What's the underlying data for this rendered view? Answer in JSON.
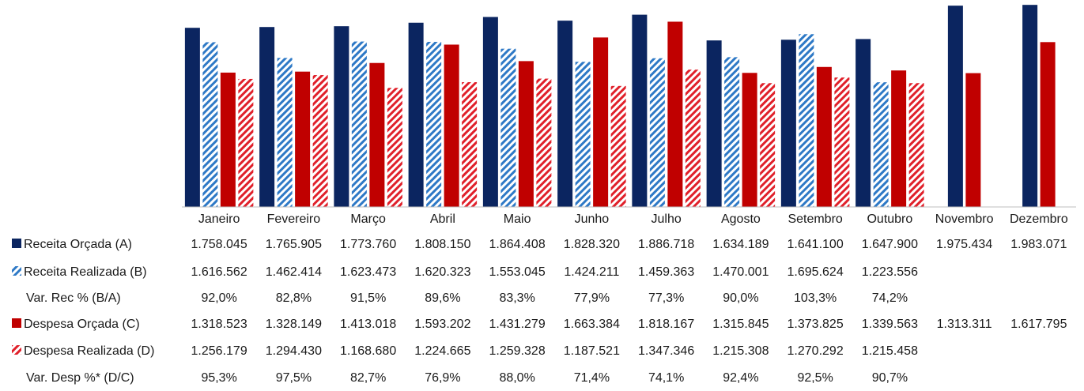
{
  "colors": {
    "receita_orcada": "#0b2560",
    "receita_realizada": "#2e79c6",
    "despesa_orcada": "#c00000",
    "despesa_realizada": "#e0202a"
  },
  "chart_data": {
    "type": "bar",
    "categories": [
      "Janeiro",
      "Fevereiro",
      "Março",
      "Abril",
      "Maio",
      "Junho",
      "Julho",
      "Agosto",
      "Setembro",
      "Outubro",
      "Novembro",
      "Dezembro"
    ],
    "ylim": [
      0,
      2000000
    ],
    "grid": false,
    "legend_position": "left, in data table",
    "series": [
      {
        "name": "Receita Orçada (A)",
        "pattern": "solid",
        "color": "#0b2560",
        "values": [
          1758045,
          1765905,
          1773760,
          1808150,
          1864408,
          1828320,
          1886718,
          1634189,
          1641100,
          1647900,
          1975434,
          1983071
        ]
      },
      {
        "name": "Receita Realizada (B)",
        "pattern": "hatched",
        "color": "#2e79c6",
        "values": [
          1616562,
          1462414,
          1623473,
          1620323,
          1553045,
          1424211,
          1459363,
          1470001,
          1695624,
          1223556,
          null,
          null
        ]
      },
      {
        "name": "Despesa Orçada (C)",
        "pattern": "solid",
        "color": "#c00000",
        "values": [
          1318523,
          1328149,
          1413018,
          1593202,
          1431279,
          1663384,
          1818167,
          1315845,
          1373825,
          1339563,
          1313311,
          1617795
        ]
      },
      {
        "name": "Despesa Realizada (D)",
        "pattern": "hatched",
        "color": "#e0202a",
        "values": [
          1256179,
          1294430,
          1168680,
          1224665,
          1259328,
          1187521,
          1347346,
          1215308,
          1270292,
          1215458,
          null,
          null
        ]
      }
    ],
    "table_rows": [
      {
        "label": "Receita Orçada (A)",
        "legend": "solid-dark-blue",
        "cells": [
          "1.758.045",
          "1.765.905",
          "1.773.760",
          "1.808.150",
          "1.864.408",
          "1.828.320",
          "1.886.718",
          "1.634.189",
          "1.641.100",
          "1.647.900",
          "1.975.434",
          "1.983.071"
        ]
      },
      {
        "label": "Receita Realizada (B)",
        "legend": "hatched-blue",
        "cells": [
          "1.616.562",
          "1.462.414",
          "1.623.473",
          "1.620.323",
          "1.553.045",
          "1.424.211",
          "1.459.363",
          "1.470.001",
          "1.695.624",
          "1.223.556",
          "",
          ""
        ]
      },
      {
        "label": "Var. Rec % (B/A)",
        "legend": "",
        "cells": [
          "92,0%",
          "82,8%",
          "91,5%",
          "89,6%",
          "83,3%",
          "77,9%",
          "77,3%",
          "90,0%",
          "103,3%",
          "74,2%",
          "",
          ""
        ]
      },
      {
        "label": "Despesa Orçada (C)",
        "legend": "solid-red",
        "cells": [
          "1.318.523",
          "1.328.149",
          "1.413.018",
          "1.593.202",
          "1.431.279",
          "1.663.384",
          "1.818.167",
          "1.315.845",
          "1.373.825",
          "1.339.563",
          "1.313.311",
          "1.617.795"
        ]
      },
      {
        "label": "Despesa Realizada (D)",
        "legend": "hatched-red",
        "cells": [
          "1.256.179",
          "1.294.430",
          "1.168.680",
          "1.224.665",
          "1.259.328",
          "1.187.521",
          "1.347.346",
          "1.215.308",
          "1.270.292",
          "1.215.458",
          "",
          ""
        ]
      },
      {
        "label": "Var. Desp %* (D/C)",
        "legend": "",
        "cells": [
          "95,3%",
          "97,5%",
          "82,7%",
          "76,9%",
          "88,0%",
          "71,4%",
          "74,1%",
          "92,4%",
          "92,5%",
          "90,7%",
          "",
          ""
        ]
      }
    ]
  }
}
